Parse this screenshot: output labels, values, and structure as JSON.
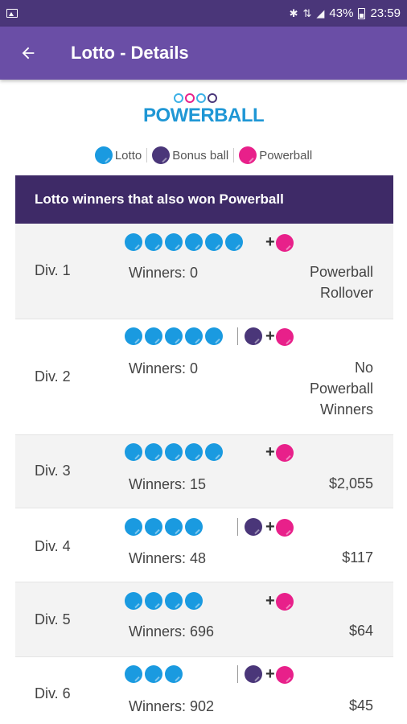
{
  "status": {
    "percent": "43%",
    "time": "23:59"
  },
  "appbar": {
    "title": "Lotto - Details"
  },
  "logo": {
    "text": "POWERBALL"
  },
  "legend": {
    "lotto": "Lotto",
    "bonus": "Bonus ball",
    "powerball": "Powerball"
  },
  "colors": {
    "lotto": "#1a9ae0",
    "bonus": "#4a3679",
    "powerball": "#e8208a",
    "header": "#3e2a67",
    "appbar": "#6a4ea6"
  },
  "section": {
    "title": "Lotto winners that also won Powerball"
  },
  "divisions": [
    {
      "label": "Div. 1",
      "lotto_balls": 6,
      "bonus": false,
      "winners": "Winners: 0",
      "prize": [
        "Powerball",
        "Rollover"
      ]
    },
    {
      "label": "Div. 2",
      "lotto_balls": 5,
      "bonus": true,
      "winners": "Winners: 0",
      "prize": [
        "No",
        "Powerball",
        "Winners"
      ]
    },
    {
      "label": "Div. 3",
      "lotto_balls": 5,
      "bonus": false,
      "winners": "Winners: 15",
      "prize": [
        "$2,055"
      ]
    },
    {
      "label": "Div. 4",
      "lotto_balls": 4,
      "bonus": true,
      "winners": "Winners: 48",
      "prize": [
        "$117"
      ]
    },
    {
      "label": "Div. 5",
      "lotto_balls": 4,
      "bonus": false,
      "winners": "Winners: 696",
      "prize": [
        "$64"
      ]
    },
    {
      "label": "Div. 6",
      "lotto_balls": 3,
      "bonus": true,
      "winners": "Winners: 902",
      "prize": [
        "$45"
      ]
    }
  ]
}
